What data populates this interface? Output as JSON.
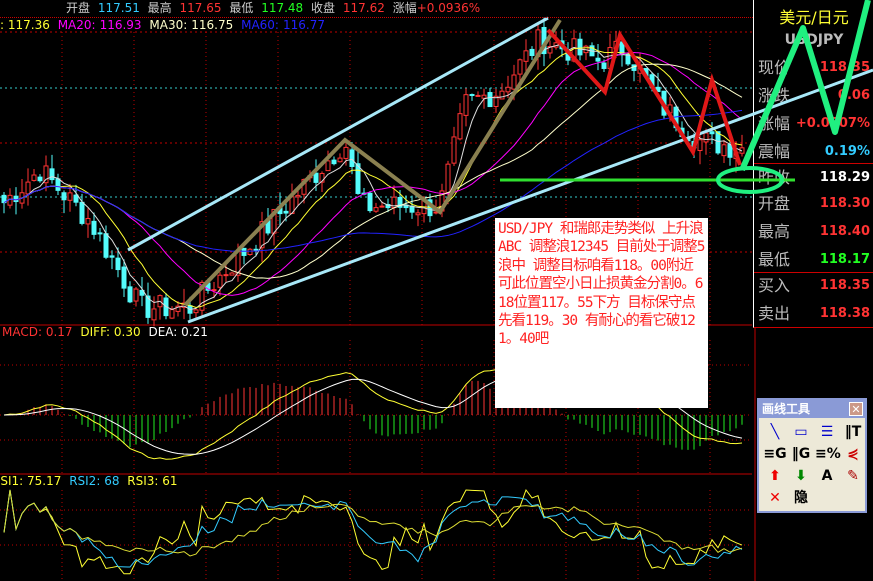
{
  "topbar": {
    "open_label": "开盘",
    "open": "117.51",
    "high_label": "最高",
    "high": "117.65",
    "low_label": "最低",
    "low": "117.48",
    "close_label": "收盘",
    "close": "117.62",
    "change_label": "涨幅",
    "change": "+0.0936%"
  },
  "ma": {
    "ma10": ": 117.36",
    "ma20_label": "MA20:",
    "ma20": "116.93",
    "ma30_label": "MA30:",
    "ma30": "116.75",
    "ma60_label": "MA60:",
    "ma60": "116.77"
  },
  "panel": {
    "title": "美元/日元",
    "symbol": "USDJPY",
    "rows": [
      {
        "label": "现价",
        "value": "118.35",
        "color": "#f33"
      },
      {
        "label": "涨跌",
        "value": "0.06",
        "color": "#f33"
      },
      {
        "label": "涨幅",
        "value": "+0.0507%",
        "color": "#f33"
      },
      {
        "label": "震幅",
        "value": "0.19%",
        "color": "#3cf"
      },
      {
        "label": "昨收",
        "value": "118.29",
        "color": "#fff"
      },
      {
        "label": "开盘",
        "value": "118.30",
        "color": "#f33"
      },
      {
        "label": "最高",
        "value": "118.40",
        "color": "#f33"
      },
      {
        "label": "最低",
        "value": "118.17",
        "color": "#2f2"
      },
      {
        "label": "买入",
        "value": "118.35",
        "color": "#f33"
      },
      {
        "label": "卖出",
        "value": "118.38",
        "color": "#f33"
      }
    ]
  },
  "macd": {
    "macd_label": "MACD:",
    "macd": "0.17",
    "diff_label": "DIFF:",
    "diff": "0.30",
    "dea_label": "DEA:",
    "dea": "0.21"
  },
  "rsi": {
    "rsi1_label": "RSI1:",
    "rsi1": "75.17",
    "rsi2_label": "RSI2:",
    "rsi2": "68",
    "rsi3_label": "RSI3:",
    "rsi3": "61"
  },
  "note": "USD/JPY 和瑞郎走势类似 上升浪ABC  调整浪12345 目前处于调整5浪中 调整目标咱看118。00附近 可此位置空小日止损黄金分割0。618位置117。55下方  目标保守点先看119。30 有耐心的看它破121。40吧",
  "tools": {
    "title": "画线工具",
    "close": "✕",
    "items": [
      {
        "name": "line-tool-icon",
        "glyph": "╲",
        "color": "#00c"
      },
      {
        "name": "rectangle-tool-icon",
        "glyph": "▭",
        "color": "#00c"
      },
      {
        "name": "parallel-lines-icon",
        "glyph": "☰",
        "color": "#00c"
      },
      {
        "name": "time-lines-icon",
        "glyph": "‖T",
        "color": "#000"
      },
      {
        "name": "gann-horizontal-icon",
        "glyph": "≡G",
        "color": "#000"
      },
      {
        "name": "gann-vertical-icon",
        "glyph": "‖G",
        "color": "#000"
      },
      {
        "name": "percent-lines-icon",
        "glyph": "≡%",
        "color": "#000"
      },
      {
        "name": "fan-lines-icon",
        "glyph": "⋞",
        "color": "#c00"
      },
      {
        "name": "up-arrow-icon",
        "glyph": "⬆",
        "color": "#e00"
      },
      {
        "name": "down-arrow-icon",
        "glyph": "⬇",
        "color": "#080"
      },
      {
        "name": "text-tool-icon",
        "glyph": "A",
        "color": "#000"
      },
      {
        "name": "eraser-icon",
        "glyph": "✎",
        "color": "#a00"
      },
      {
        "name": "delete-icon",
        "glyph": "✕",
        "color": "#e00"
      },
      {
        "name": "hide-icon",
        "glyph": "隐",
        "color": "#000"
      }
    ]
  },
  "colors": {
    "up": "#ff3333",
    "down": "#54fcfc",
    "channel": "#a8e8f8",
    "wave": "#8a8050",
    "zigzag": "#e01818",
    "annotation_green": "#20f080",
    "support": "#30e030",
    "grid": "#c00000"
  },
  "price_path": [
    [
      0,
      117.3
    ],
    [
      40,
      117.55
    ],
    [
      90,
      117.2
    ],
    [
      140,
      116.6
    ],
    [
      190,
      116.6
    ],
    [
      260,
      117.1
    ],
    [
      345,
      117.75
    ],
    [
      360,
      117.3
    ],
    [
      440,
      117.3
    ],
    [
      465,
      118.0
    ],
    [
      500,
      118.1
    ],
    [
      540,
      118.45
    ],
    [
      600,
      118.3
    ],
    [
      625,
      118.4
    ],
    [
      660,
      118.0
    ],
    [
      700,
      117.75
    ],
    [
      745,
      117.7
    ]
  ]
}
